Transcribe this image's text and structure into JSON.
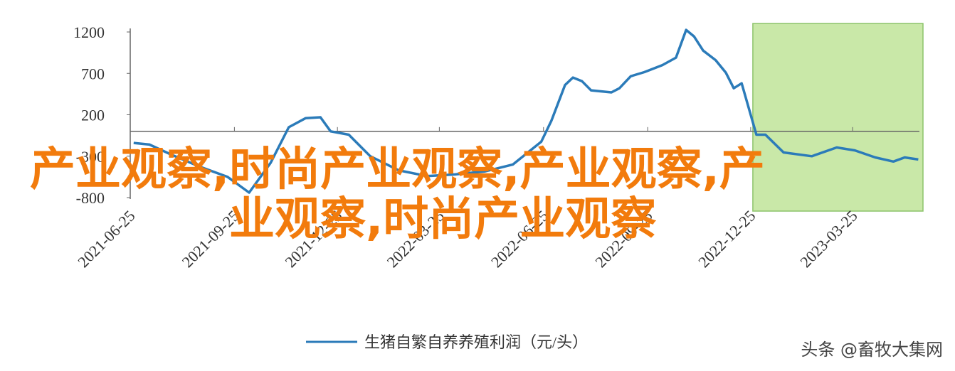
{
  "chart_data": {
    "type": "line",
    "x": [
      "2021-06-28",
      "2021-07-12",
      "2021-07-31",
      "2021-08-25",
      "2021-09-19",
      "2021-10-08",
      "2021-10-27",
      "2021-11-12",
      "2021-11-27",
      "2021-12-10",
      "2021-12-19",
      "2022-01-04",
      "2022-01-23",
      "2022-02-17",
      "2022-03-14",
      "2022-04-08",
      "2022-05-04",
      "2022-05-29",
      "2022-06-23",
      "2022-07-02",
      "2022-07-14",
      "2022-07-21",
      "2022-07-29",
      "2022-08-06",
      "2022-08-24",
      "2022-08-31",
      "2022-09-10",
      "2022-09-22",
      "2022-10-08",
      "2022-10-20",
      "2022-10-29",
      "2022-11-05",
      "2022-11-13",
      "2022-11-24",
      "2022-12-03",
      "2022-12-10",
      "2022-12-17",
      "2022-12-30",
      "2023-01-07",
      "2023-01-23",
      "2023-02-17",
      "2023-03-11",
      "2023-03-27",
      "2023-04-14",
      "2023-04-30",
      "2023-05-10",
      "2023-05-22"
    ],
    "series": [
      {
        "name": "生猪自繁自养养殖利润（元/头）",
        "color": "#2b7bb9",
        "values": [
          -140,
          -160,
          -280,
          -425,
          -550,
          -740,
          -380,
          50,
          160,
          170,
          0,
          -40,
          -300,
          -470,
          -540,
          -520,
          -485,
          -400,
          -125,
          130,
          560,
          650,
          605,
          495,
          470,
          520,
          665,
          715,
          800,
          890,
          1225,
          1145,
          975,
          860,
          710,
          520,
          580,
          -40,
          -40,
          -255,
          -300,
          -195,
          -230,
          -315,
          -365,
          -315,
          -340
        ]
      }
    ],
    "xlim": [
      "2021-06-25",
      "2023-05-23"
    ],
    "xticks": [
      "2021-06-25",
      "2021-09-25",
      "2021-12-25",
      "2022-03-25",
      "2022-06-25",
      "2022-09-25",
      "2022-12-25",
      "2023-03-25"
    ],
    "ylim": [
      -800,
      1200
    ],
    "yticks": [
      1200,
      700,
      200,
      -300,
      -800
    ],
    "highlight": {
      "from": "2022-12-25",
      "to": "2023-05-23",
      "color": "#c9e8a8",
      "border": "#8cc36a"
    },
    "overlay_text": [
      "产业观察,时尚产业观察,产业观察,产",
      "业观察,时尚产业观察"
    ],
    "watermark": "头条 @畜牧大集网"
  }
}
